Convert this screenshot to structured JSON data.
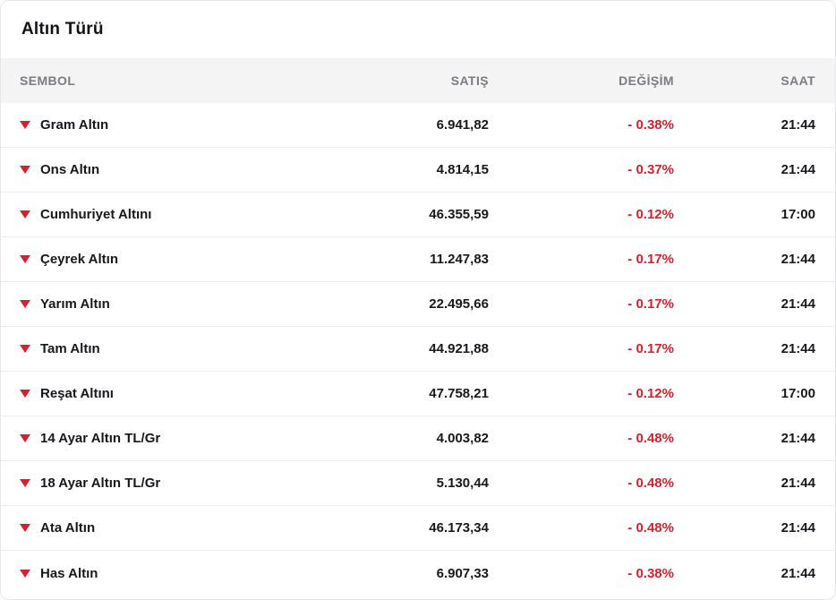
{
  "title": "Altın Türü",
  "colors": {
    "negative_red": "#d8202c",
    "header_background": "#f4f4f5",
    "header_text": "#7b7b81",
    "row_text": "#17181c"
  },
  "table": {
    "columns": [
      "SEMBOL",
      "SATIŞ",
      "DEĞİŞİM",
      "SAAT"
    ],
    "row_icon": "triangle-down",
    "rows": [
      {
        "symbol": "Gram Altın",
        "price": "6.941,82",
        "change": "- 0.38%",
        "time": "21:44"
      },
      {
        "symbol": "Ons Altın",
        "price": "4.814,15",
        "change": "- 0.37%",
        "time": "21:44"
      },
      {
        "symbol": "Cumhuriyet Altını",
        "price": "46.355,59",
        "change": "- 0.12%",
        "time": "17:00"
      },
      {
        "symbol": "Çeyrek Altın",
        "price": "11.247,83",
        "change": "- 0.17%",
        "time": "21:44"
      },
      {
        "symbol": "Yarım Altın",
        "price": "22.495,66",
        "change": "- 0.17%",
        "time": "21:44"
      },
      {
        "symbol": "Tam Altın",
        "price": "44.921,88",
        "change": "- 0.17%",
        "time": "21:44"
      },
      {
        "symbol": "Reşat Altını",
        "price": "47.758,21",
        "change": "- 0.12%",
        "time": "17:00"
      },
      {
        "symbol": "14 Ayar Altın TL/Gr",
        "price": "4.003,82",
        "change": "- 0.48%",
        "time": "21:44"
      },
      {
        "symbol": "18 Ayar Altın TL/Gr",
        "price": "5.130,44",
        "change": "- 0.48%",
        "time": "21:44"
      },
      {
        "symbol": "Ata Altın",
        "price": "46.173,34",
        "change": "- 0.48%",
        "time": "21:44"
      },
      {
        "symbol": "Has Altın",
        "price": "6.907,33",
        "change": "- 0.38%",
        "time": "21:44"
      }
    ]
  }
}
